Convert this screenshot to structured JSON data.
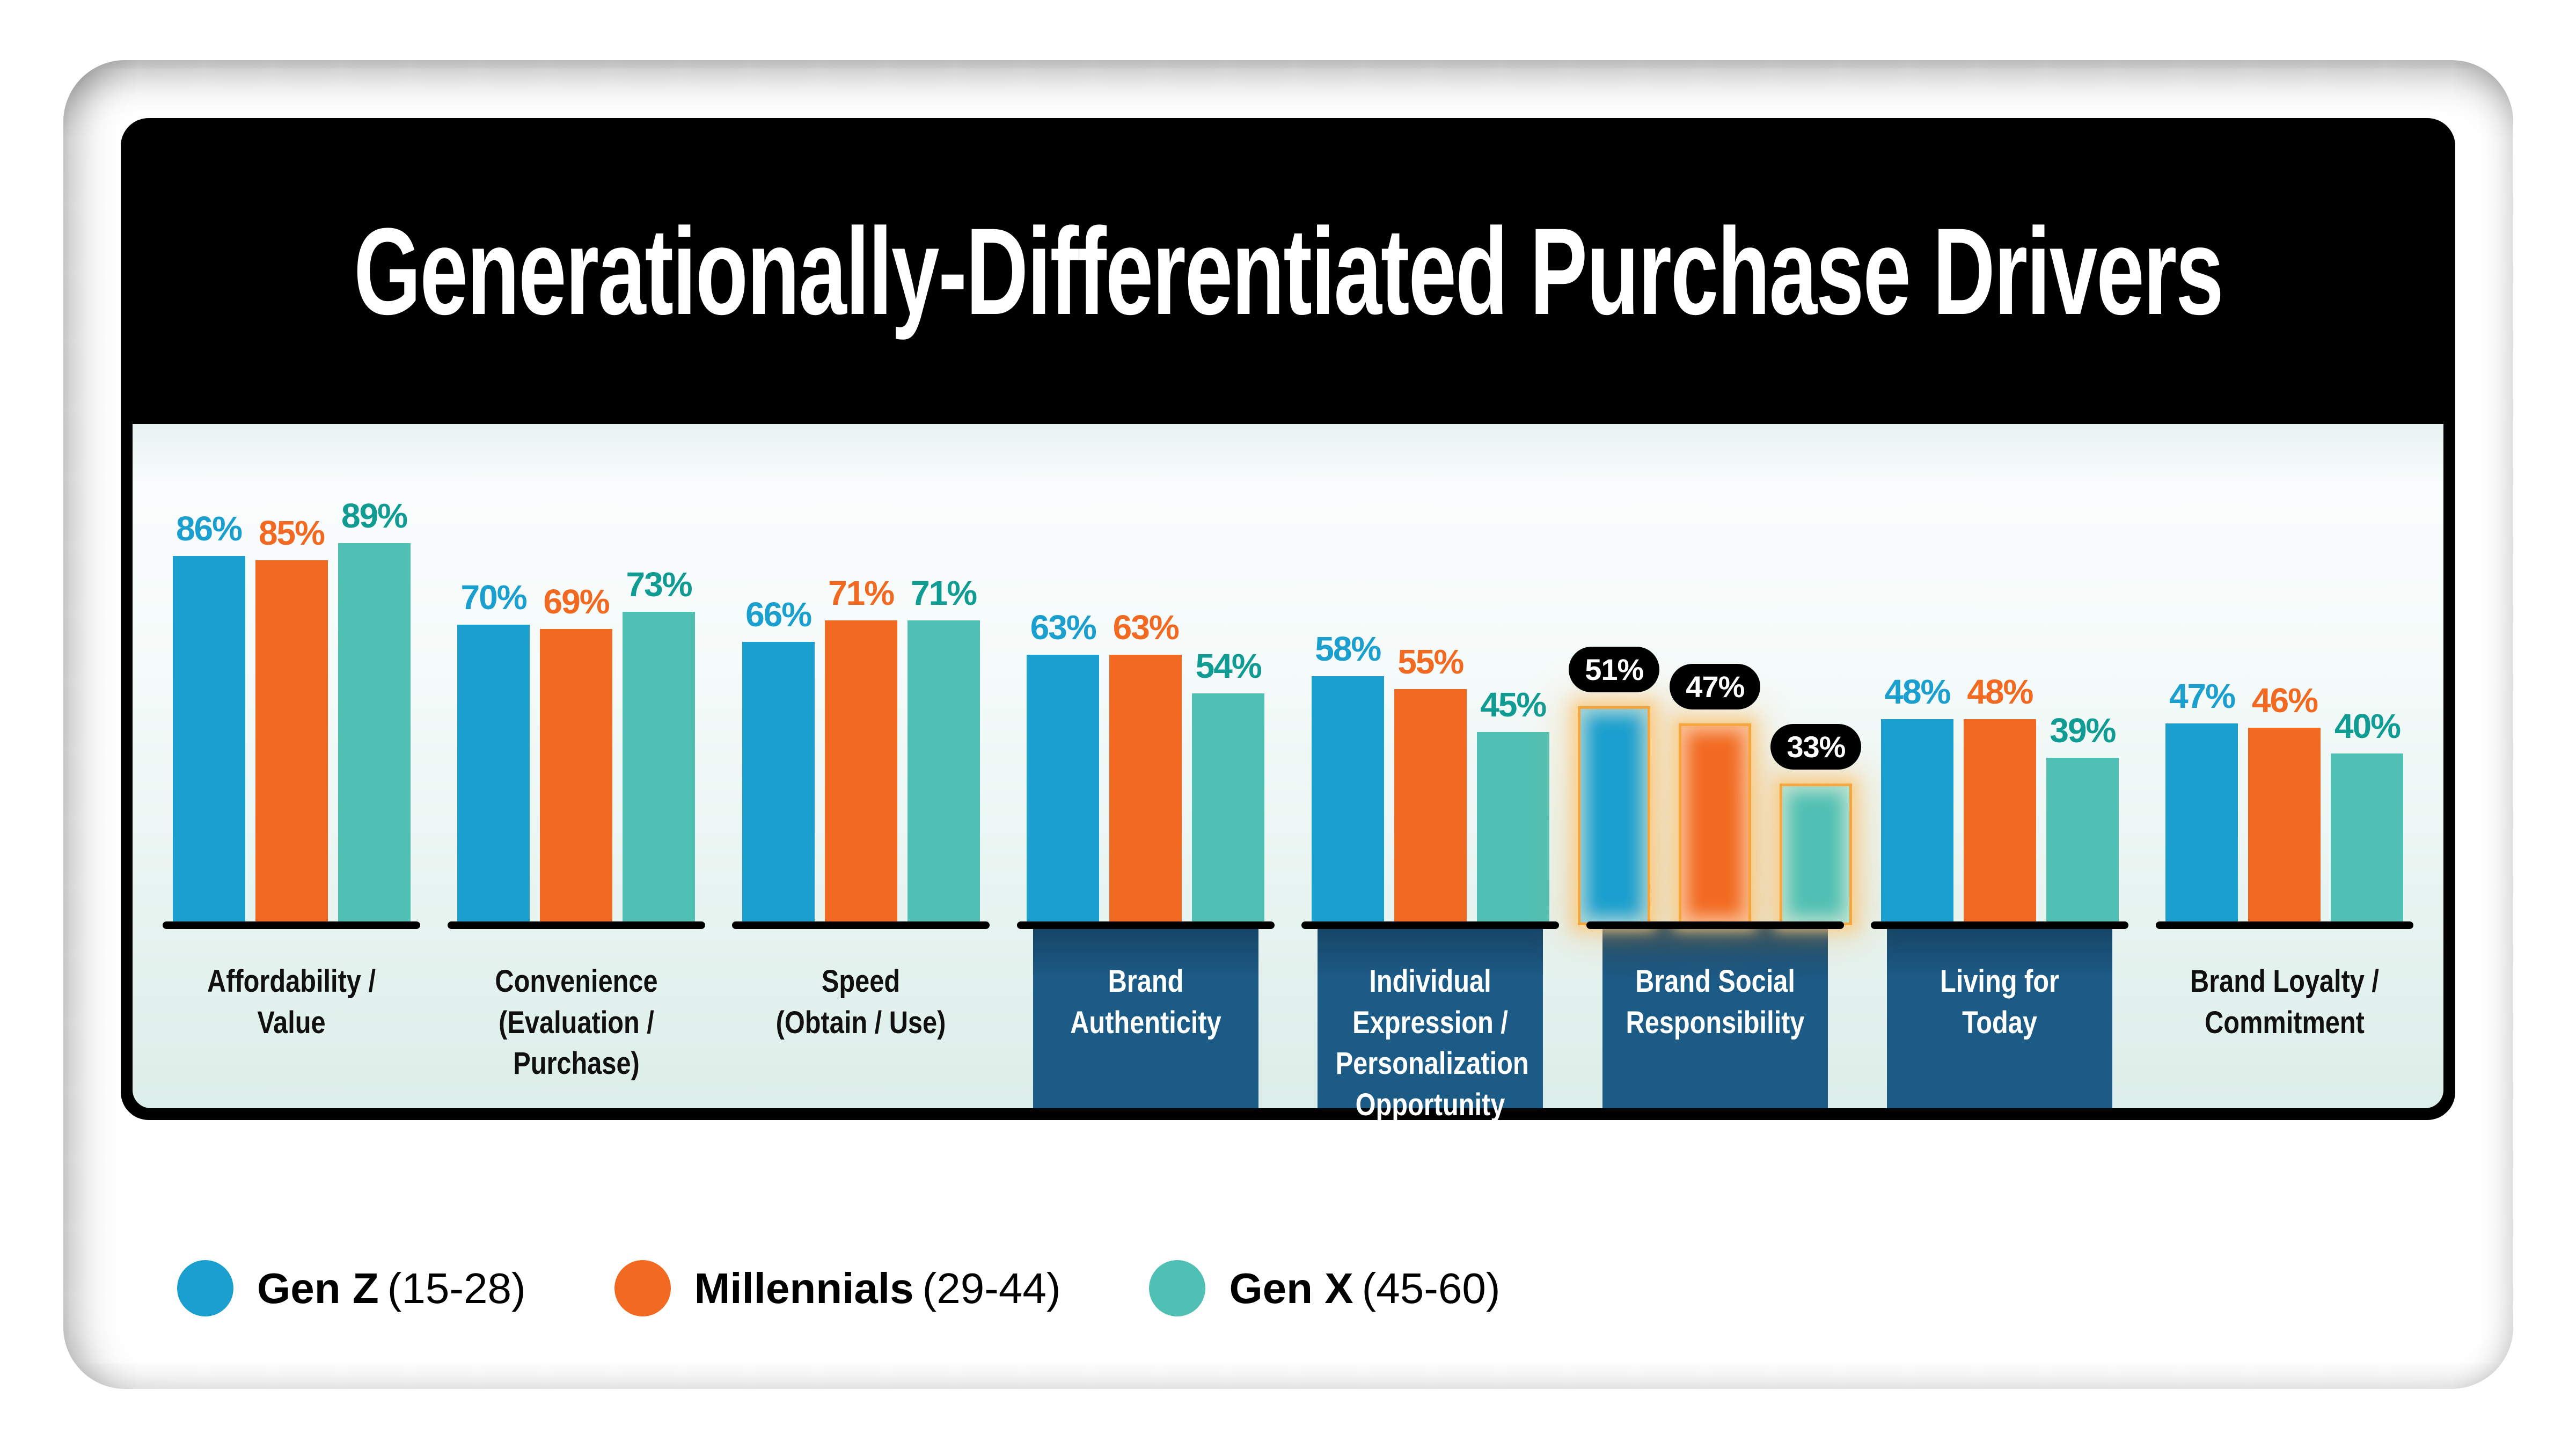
{
  "title": "Generationally-Differentiated Purchase Drivers",
  "legend": {
    "items": [
      {
        "name": "Gen Z",
        "range": "(15-28)",
        "color": "#1B9FCE"
      },
      {
        "name": "Millennials",
        "range": "(29-44)",
        "color": "#F26A21"
      },
      {
        "name": "Gen X",
        "range": "(45-60)",
        "color": "#50C0B4"
      }
    ]
  },
  "chart_data": {
    "type": "bar",
    "title": "Generationally-Differentiated Purchase Drivers",
    "unit": "%",
    "ylim": [
      0,
      100
    ],
    "grid": false,
    "legend_position": "bottom-left",
    "categories": [
      "Affordability / Value",
      "Convenience (Evaluation / Purchase)",
      "Speed (Obtain / Use)",
      "Brand Authenticity",
      "Individual Expression / Personalization Opportunity",
      "Brand Social Responsibility",
      "Living for Today",
      "Brand Loyalty / Commitment"
    ],
    "category_lines": [
      [
        "Affordability /",
        "Value"
      ],
      [
        "Convenience",
        "(Evaluation /",
        "Purchase)"
      ],
      [
        "Speed",
        "(Obtain / Use)"
      ],
      [
        "Brand",
        "Authenticity"
      ],
      [
        "Individual",
        "Expression /",
        "Personalization",
        "Opportunity"
      ],
      [
        "Brand Social",
        "Responsibility"
      ],
      [
        "Living for",
        "Today"
      ],
      [
        "Brand Loyalty /",
        "Commitment"
      ]
    ],
    "series": [
      {
        "name": "Gen Z (15-28)",
        "color": "#1B9FCE",
        "label_color": "#1B9FCE",
        "values": [
          86,
          70,
          66,
          63,
          58,
          51,
          48,
          47
        ]
      },
      {
        "name": "Millennials (29-44)",
        "color": "#F26A21",
        "label_color": "#F26A21",
        "values": [
          85,
          69,
          71,
          63,
          55,
          47,
          48,
          46
        ]
      },
      {
        "name": "Gen X (45-60)",
        "color": "#50C0B4",
        "label_color": "#119C93",
        "values": [
          89,
          73,
          71,
          54,
          45,
          33,
          39,
          40
        ]
      }
    ],
    "value_labels": "percent shown above each bar",
    "highlighted_category": "Brand Social Responsibility",
    "highlighted_index": 5,
    "highlight_style": {
      "stroke": "#F7A63E",
      "glow": "orange",
      "badge_bg": "#000000",
      "badge_text": "#FFFFFF"
    },
    "boxed_label_indices": [
      3,
      4,
      5,
      6
    ],
    "boxed_label_bg": "#1D5B87",
    "header_bg": "#000000",
    "header_text_color": "#FFFFFF",
    "axis_color": "#000000"
  }
}
